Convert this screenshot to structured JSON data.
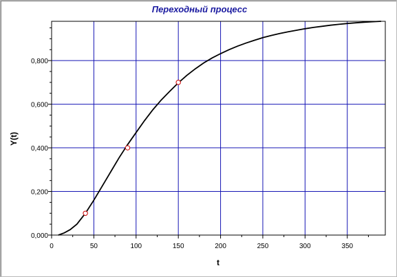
{
  "chart_data": {
    "type": "line",
    "title": "Переходный процесс",
    "xlabel": "t",
    "ylabel": "Y(t)",
    "xlim": [
      0,
      395
    ],
    "ylim": [
      0,
      0.98
    ],
    "x_ticks": [
      0,
      50,
      100,
      150,
      200,
      250,
      300,
      350
    ],
    "x_tick_labels": [
      "0",
      "50",
      "100",
      "150",
      "200",
      "250",
      "300",
      "350"
    ],
    "y_ticks": [
      0,
      0.2,
      0.4,
      0.6,
      0.8
    ],
    "y_tick_labels": [
      "0,000",
      "0,200",
      "0,400",
      "0,600",
      "0,800"
    ],
    "grid": true,
    "series": [
      {
        "color": "#000000",
        "x": [
          8,
          15,
          22,
          30,
          40,
          50,
          60,
          70,
          80,
          90,
          100,
          110,
          120,
          130,
          140,
          150,
          160,
          170,
          180,
          190,
          200,
          210,
          220,
          230,
          240,
          250,
          260,
          270,
          280,
          290,
          300,
          310,
          320,
          330,
          340,
          350,
          360,
          370,
          380,
          390
        ],
        "y": [
          0.0,
          0.01,
          0.025,
          0.05,
          0.1,
          0.16,
          0.225,
          0.29,
          0.355,
          0.415,
          0.47,
          0.525,
          0.575,
          0.62,
          0.66,
          0.698,
          0.732,
          0.762,
          0.789,
          0.812,
          0.832,
          0.85,
          0.866,
          0.88,
          0.893,
          0.905,
          0.915,
          0.924,
          0.932,
          0.939,
          0.946,
          0.952,
          0.957,
          0.962,
          0.966,
          0.97,
          0.973,
          0.976,
          0.978,
          0.98
        ]
      }
    ],
    "markers": {
      "x": [
        40,
        90,
        150
      ],
      "y": [
        0.1,
        0.4,
        0.7
      ],
      "fill": "#ffffff",
      "stroke": "#cc0000"
    },
    "colors": {
      "grid": "#1414b4",
      "title": "#1a1aa0",
      "line": "#000000"
    }
  }
}
